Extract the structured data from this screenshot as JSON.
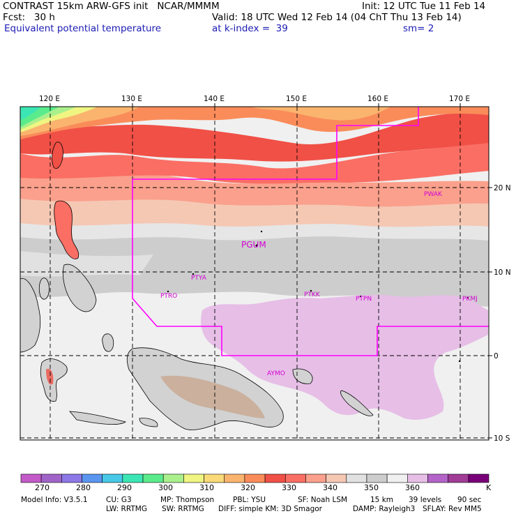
{
  "header": {
    "line1_left": "CONTRAST 15km ARW-GFS init   NCAR/MMMM",
    "line1_right": "Init: 12 UTC Tue 11 Feb 14",
    "line2_fcst": "Fcst:   30 h",
    "line2_valid": "Valid: 18 UTC Wed 12 Feb 14 (04 ChT Thu 13 Feb 14)",
    "line3_field": "Equivalent potential temperature",
    "line3_level": "at k-index =  39",
    "line3_sm": "sm= 2"
  },
  "map": {
    "lon_labels": [
      "120 E",
      "130 E",
      "140 E",
      "150 E",
      "160 E",
      "170 E"
    ],
    "lat_labels": [
      "20 N",
      "10 N",
      "0",
      "10 S"
    ],
    "stations": [
      "PGUM",
      "PTYA",
      "PTRO",
      "PTKK",
      "PTPN",
      "PKMJ",
      "PWAK",
      "AYMO"
    ],
    "boundary_color": "#ff00ff",
    "station_color": "#d400d4"
  },
  "colorbar": {
    "colors": [
      "#c35ac8",
      "#a064c8",
      "#8c78e6",
      "#5a96f0",
      "#46c8e6",
      "#3ce6b4",
      "#5aeb8c",
      "#aaf08c",
      "#f0f582",
      "#fada78",
      "#fab46e",
      "#fa8c5a",
      "#f05046",
      "#fa6e64",
      "#faa08c",
      "#f5c8b4",
      "#e1e1e1",
      "#cdcdcd",
      "#f0f0f0",
      "#e6bee6",
      "#b464c8",
      "#a03c96",
      "#780078"
    ],
    "labels": [
      "270",
      "280",
      "290",
      "300",
      "310",
      "320",
      "330",
      "340",
      "350",
      "360"
    ],
    "unit": "K"
  },
  "footer": {
    "row1": [
      "Model Info: V3.5.1",
      "CU: G3",
      "MP: Thompson",
      "PBL: YSU",
      "SF: Noah LSM",
      "15 km",
      "39 levels",
      "90 sec"
    ],
    "row2": [
      "LW: RRTMG",
      "SW: RRTMG",
      "DIFF: simple KM: 3D Smagor",
      "DAMP: Rayleigh3",
      "SFLAY: Rev MM5"
    ]
  }
}
